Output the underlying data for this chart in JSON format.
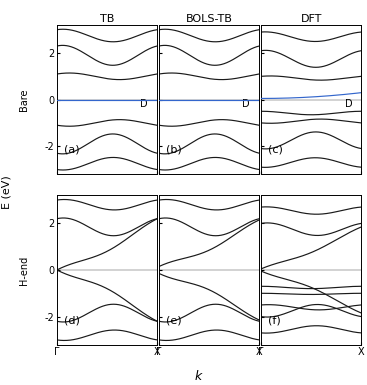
{
  "title_row": [
    "TB",
    "BOLS-TB",
    "DFT"
  ],
  "row_labels": [
    "Bare",
    "H-end"
  ],
  "panel_labels": [
    [
      "(a)",
      "(b)",
      "(c)"
    ],
    [
      "(d)",
      "(e)",
      "(f)"
    ]
  ],
  "D_labels": [
    [
      true,
      true,
      true
    ],
    [
      false,
      false,
      false
    ]
  ],
  "xlabel": "k",
  "ylabel": "E (eV)",
  "xtick_labels": [
    "Γ",
    "X"
  ],
  "ylim": [
    -3.2,
    3.2
  ],
  "yticks": [
    -2,
    0,
    2
  ],
  "figsize": [
    3.67,
    3.85
  ],
  "dpi": 100,
  "bg_color": "white",
  "line_color": "#1a1a1a",
  "blue_color": "#3366cc",
  "lw": 0.85
}
